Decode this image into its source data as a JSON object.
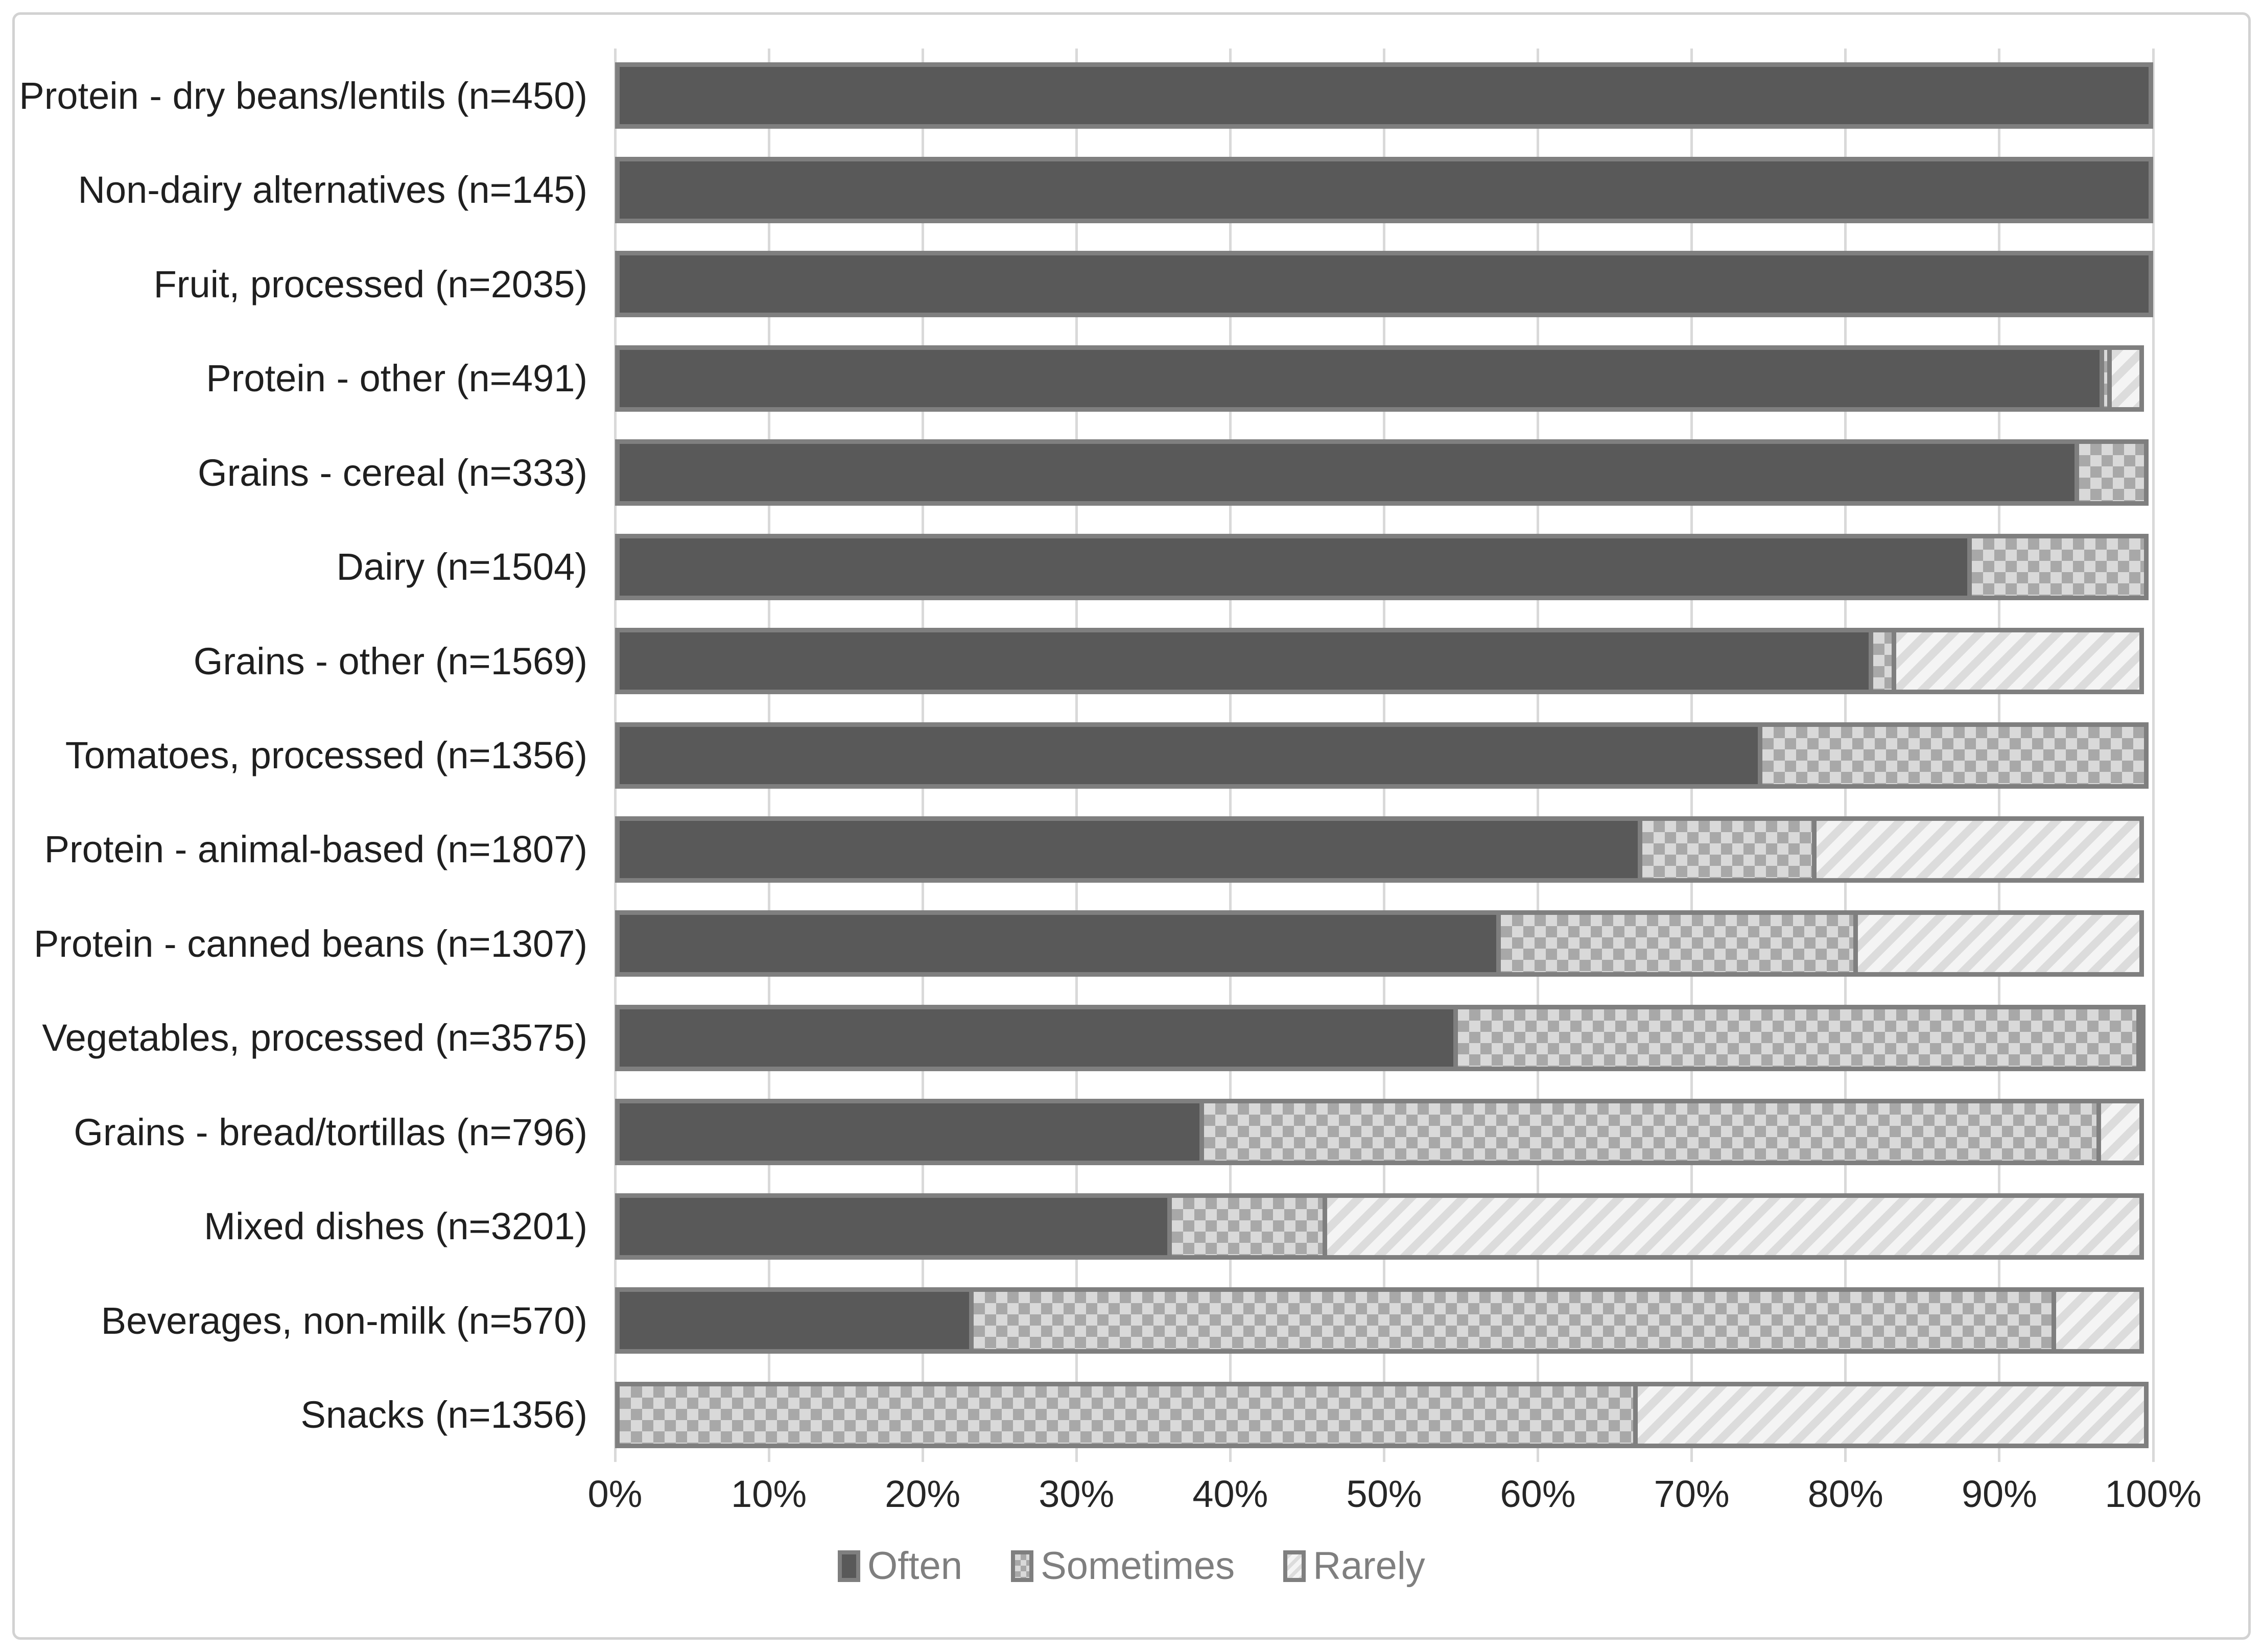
{
  "chart_data": {
    "type": "bar",
    "orientation": "horizontal",
    "stacked": true,
    "title": "",
    "xlabel": "",
    "ylabel": "",
    "categories": [
      "Protein - dry beans/lentils (n=450)",
      "Non-dairy alternatives (n=145)",
      "Fruit, processed (n=2035)",
      "Protein - other (n=491)",
      "Grains - cereal (n=333)",
      "Dairy (n=1504)",
      "Grains - other (n=1569)",
      "Tomatoes, processed (n=1356)",
      "Protein - animal-based (n=1807)",
      "Protein - canned beans (n=1307)",
      "Vegetables, processed (n=3575)",
      "Grains - bread/tortillas (n=796)",
      "Mixed dishes (n=3201)",
      "Beverages, non-milk (n=570)",
      "Snacks (n=1356)"
    ],
    "series": [
      {
        "name": "Often",
        "values": [
          100,
          100,
          100,
          96.8,
          95.2,
          88.2,
          81.8,
          74.6,
          66.8,
          57.6,
          54.8,
          38.3,
          36.2,
          23.3,
          0
        ]
      },
      {
        "name": "Sometimes",
        "values": [
          0,
          0,
          0,
          0.8,
          4.8,
          11.8,
          1.8,
          25.4,
          11.6,
          23.5,
          44.7,
          58.6,
          10.4,
          70.7,
          66.5
        ]
      },
      {
        "name": "Rarely",
        "values": [
          0,
          0,
          0,
          2.4,
          0,
          0,
          16.4,
          0,
          21.6,
          18.9,
          0.5,
          3.1,
          53.4,
          6.0,
          33.5
        ]
      }
    ],
    "x_axis": {
      "min": 0,
      "max": 100,
      "step": 10,
      "tick_labels": [
        "0%",
        "10%",
        "20%",
        "30%",
        "40%",
        "50%",
        "60%",
        "70%",
        "80%",
        "90%",
        "100%"
      ]
    },
    "legend": {
      "position": "bottom",
      "entries": [
        "Often",
        "Sometimes",
        "Rarely"
      ]
    },
    "grid": "vertical-only"
  },
  "styles": {
    "often_fill": "#595959",
    "sometimes_bg": "#d9d9d9",
    "sometimes_check": "#a8a8a8",
    "rarely_bg": "#f4f4f4",
    "rarely_stripe": "#dcdcdc",
    "segment_border": "#7f7f7f",
    "gridline": "#d9d9d9",
    "frame_border": "#d2d2d2",
    "label_color": "#1f1f1f",
    "legend_text": "#7f7f7f"
  }
}
